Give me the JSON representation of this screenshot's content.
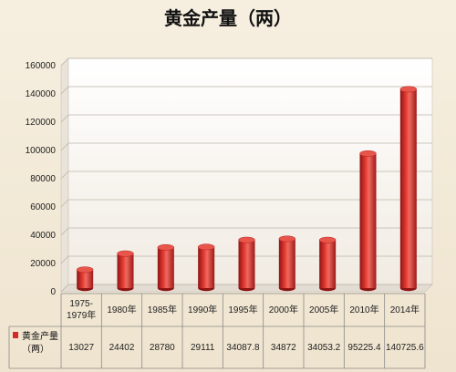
{
  "chart_data": {
    "type": "bar",
    "title": "黄金产量（两）",
    "categories": [
      [
        "1975-",
        "1979年"
      ],
      [
        "1980年"
      ],
      [
        "1985年"
      ],
      [
        "1990年"
      ],
      [
        "1995年"
      ],
      [
        "2000年"
      ],
      [
        "2005年"
      ],
      [
        "2010年"
      ],
      [
        "2014年"
      ]
    ],
    "series": [
      {
        "name": [
          "黄金产量",
          "（两）"
        ],
        "values": [
          13027,
          24402,
          28780,
          29111,
          34087.8,
          34872,
          34053.2,
          95225.4,
          140725.6
        ],
        "labels": [
          "13027",
          "24402",
          "28780",
          "29111",
          "34087.8",
          "34872",
          "34053.2",
          "95225.4",
          "140725.6"
        ],
        "color": "#d42a2a"
      }
    ],
    "ylim": [
      0,
      160000
    ],
    "yticks": [
      0,
      20000,
      40000,
      60000,
      80000,
      100000,
      120000,
      140000,
      160000
    ],
    "grid": true,
    "legend": "data-table"
  }
}
